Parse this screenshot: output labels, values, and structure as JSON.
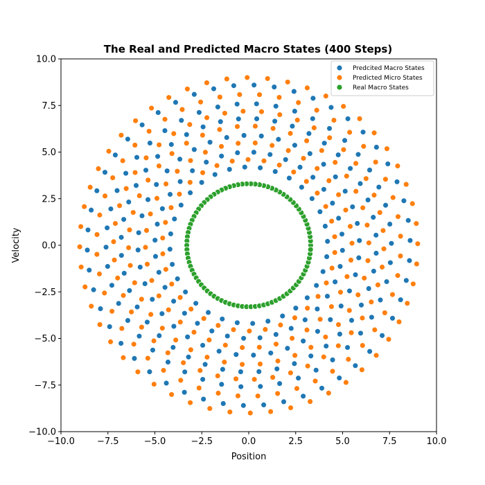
{
  "chart_data": {
    "type": "scatter",
    "title": "The Real and Predicted Macro States (400 Steps)",
    "xlabel": "Position",
    "ylabel": "Velocity",
    "xlim": [
      -10.0,
      10.0
    ],
    "ylim": [
      -10.0,
      10.0
    ],
    "xticks": [
      -10.0,
      -7.5,
      -5.0,
      -2.5,
      0.0,
      2.5,
      5.0,
      7.5,
      10.0
    ],
    "xtick_labels": [
      "−10.0",
      "−7.5",
      "−5.0",
      "−2.5",
      "0.0",
      "2.5",
      "5.0",
      "7.5",
      "10.0"
    ],
    "yticks": [
      -10.0,
      -7.5,
      -5.0,
      -2.5,
      0.0,
      2.5,
      5.0,
      7.5,
      10.0
    ],
    "ytick_labels": [
      "−10.0",
      "−7.5",
      "−5.0",
      "−2.5",
      "0.0",
      "2.5",
      "5.0",
      "7.5",
      "10.0"
    ],
    "grid": false,
    "legend_position": "top-right",
    "series": [
      {
        "name": "Predcited Macro States",
        "color": "#1f77b4",
        "description": "points scattered on concentric rings around origin",
        "rings": [
          {
            "radius": 4.2,
            "points": 32,
            "phase": 0.05
          },
          {
            "radius": 5.0,
            "points": 36,
            "phase": 0.12
          },
          {
            "radius": 5.9,
            "points": 40,
            "phase": 0.2
          },
          {
            "radius": 6.8,
            "points": 44,
            "phase": 0.08
          },
          {
            "radius": 7.6,
            "points": 46,
            "phase": 0.15
          },
          {
            "radius": 8.6,
            "points": 50,
            "phase": 0.03
          }
        ]
      },
      {
        "name": "Predicted Micro States",
        "color": "#ff7f0e",
        "description": "points scattered on concentric rings around origin",
        "rings": [
          {
            "radius": 4.6,
            "points": 34,
            "phase": 0.1
          },
          {
            "radius": 5.5,
            "points": 38,
            "phase": 0.02
          },
          {
            "radius": 6.4,
            "points": 42,
            "phase": 0.17
          },
          {
            "radius": 7.2,
            "points": 46,
            "phase": 0.11
          },
          {
            "radius": 8.1,
            "points": 48,
            "phase": 0.06
          },
          {
            "radius": 9.0,
            "points": 52,
            "phase": 0.13
          }
        ]
      },
      {
        "name": "Real Macro States",
        "color": "#2ca02c",
        "description": "dense circle of radius ~3.3",
        "rings": [
          {
            "radius": 3.3,
            "points": 90,
            "phase": 0.0
          }
        ]
      }
    ]
  }
}
